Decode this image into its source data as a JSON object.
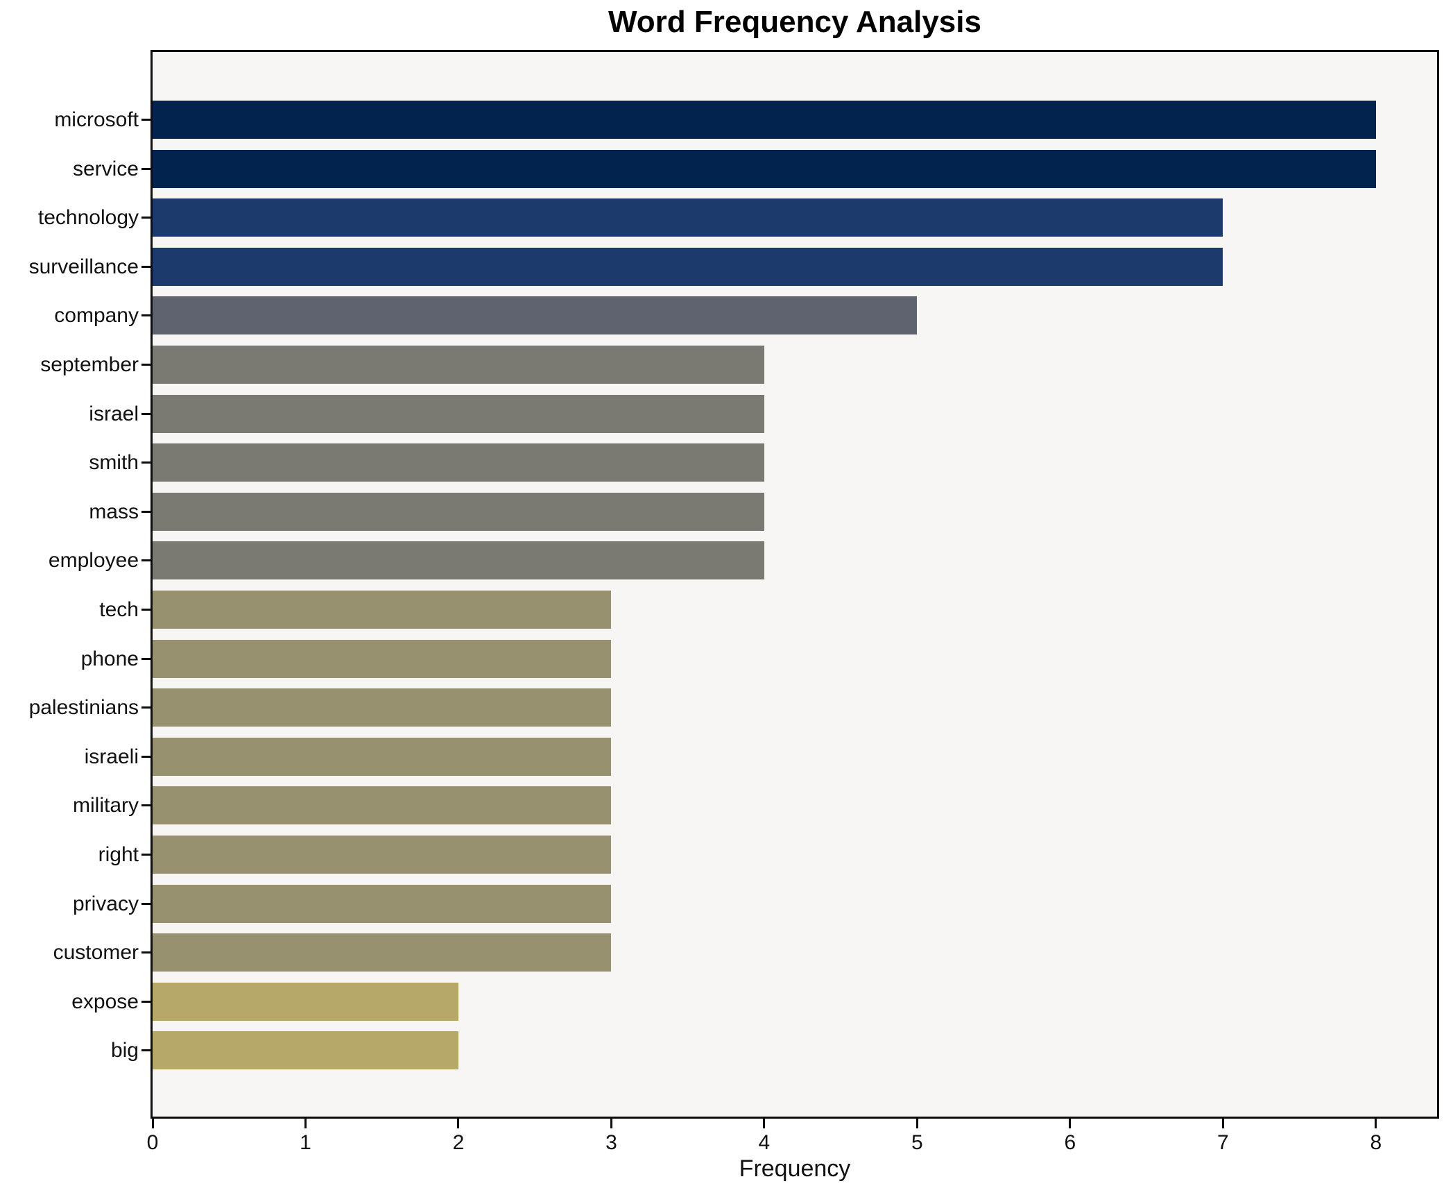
{
  "title": "Word Frequency Analysis",
  "chart_data": {
    "type": "bar",
    "orientation": "horizontal",
    "title": "Word Frequency Analysis",
    "xlabel": "Frequency",
    "ylabel": "",
    "categories": [
      "microsoft",
      "service",
      "technology",
      "surveillance",
      "company",
      "september",
      "israel",
      "smith",
      "mass",
      "employee",
      "tech",
      "phone",
      "palestinians",
      "israeli",
      "military",
      "right",
      "privacy",
      "customer",
      "expose",
      "big"
    ],
    "values": [
      8,
      8,
      7,
      7,
      5,
      4,
      4,
      4,
      4,
      4,
      3,
      3,
      3,
      3,
      3,
      3,
      3,
      3,
      2,
      2
    ],
    "x_ticks": [
      0,
      1,
      2,
      3,
      4,
      5,
      6,
      7,
      8
    ],
    "xlim": [
      0,
      8.4
    ],
    "grid": false,
    "legend": false,
    "plot_background": "#f7f6f5",
    "figure_background": "#ffffff",
    "spine_color": "#0d0d0d",
    "colors_by_value": {
      "8": "#02234e",
      "7": "#1c3a6c",
      "5": "#5f6370",
      "4": "#7b7a72",
      "3": "#989170",
      "2": "#b5a869"
    }
  }
}
